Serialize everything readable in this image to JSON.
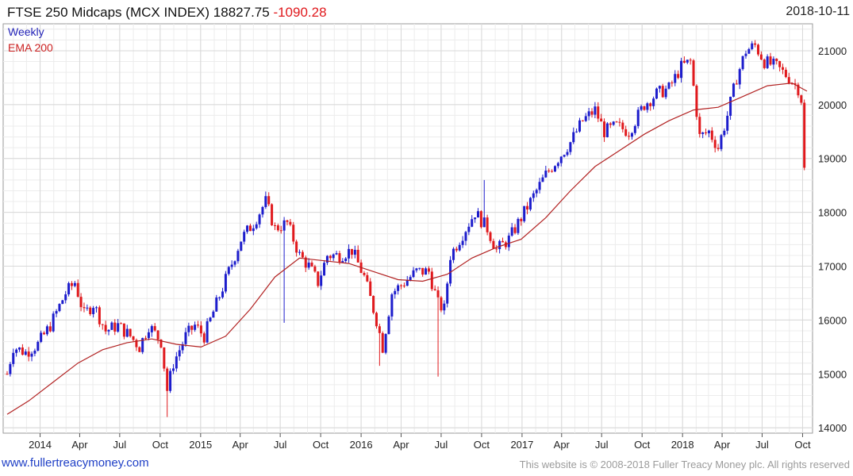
{
  "header": {
    "title": "FTSE 250 Midcaps (MCX INDEX)",
    "last": "18827.75",
    "change": "-1090.28",
    "date": "2018-10-11"
  },
  "legend": {
    "weekly": "Weekly",
    "ema": "EMA 200"
  },
  "footer": {
    "website": "www.fullertreacymoney.com",
    "copyright": "This website is © 2008-2018 Fuller Treacy Money plc. All rights reserved"
  },
  "colors": {
    "up": "#1d1dcc",
    "down": "#e0191d",
    "ema": "#b22222",
    "grid": "#d8d8d8"
  },
  "chart_data": {
    "type": "candlestick",
    "frequency": "weekly",
    "ylim": [
      13900,
      21500
    ],
    "y_ticks": [
      14000,
      15000,
      16000,
      17000,
      18000,
      19000,
      20000,
      21000
    ],
    "x_ticks": [
      "2014",
      "Apr",
      "Jul",
      "Oct",
      "2015",
      "Apr",
      "Jul",
      "Oct",
      "2016",
      "Apr",
      "Jul",
      "Oct",
      "2017",
      "Apr",
      "Jul",
      "Oct",
      "2018",
      "Apr",
      "Jul",
      "Oct"
    ],
    "grid": true,
    "legend_position": "top-left",
    "series": [
      {
        "name": "Weekly",
        "close_path": [
          [
            "2013-10-18",
            15000
          ],
          [
            "2013-11-01",
            15500
          ],
          [
            "2013-11-29",
            15400
          ],
          [
            "2013-12-27",
            15550
          ],
          [
            "2014-01-24",
            15900
          ],
          [
            "2014-02-28",
            16500
          ],
          [
            "2014-03-21",
            16700
          ],
          [
            "2014-04-11",
            16100
          ],
          [
            "2014-05-02",
            16300
          ],
          [
            "2014-05-30",
            15800
          ],
          [
            "2014-06-27",
            15900
          ],
          [
            "2014-07-25",
            15700
          ],
          [
            "2014-08-15",
            15500
          ],
          [
            "2014-09-05",
            15900
          ],
          [
            "2014-10-03",
            15600
          ],
          [
            "2014-10-17",
            14700
          ],
          [
            "2014-10-31",
            15200
          ],
          [
            "2014-11-28",
            15700
          ],
          [
            "2014-12-19",
            15900
          ],
          [
            "2015-01-09",
            15700
          ],
          [
            "2015-02-06",
            16300
          ],
          [
            "2015-03-06",
            16900
          ],
          [
            "2015-04-03",
            17500
          ],
          [
            "2015-05-01",
            17800
          ],
          [
            "2015-05-29",
            18200
          ],
          [
            "2015-06-19",
            17700
          ],
          [
            "2015-07-17",
            17800
          ],
          [
            "2015-08-14",
            17200
          ],
          [
            "2015-09-04",
            17000
          ],
          [
            "2015-09-25",
            16700
          ],
          [
            "2015-10-16",
            17200
          ],
          [
            "2015-11-13",
            17200
          ],
          [
            "2015-12-11",
            17300
          ],
          [
            "2016-01-08",
            16800
          ],
          [
            "2016-02-05",
            16000
          ],
          [
            "2016-02-19",
            15500
          ],
          [
            "2016-03-11",
            16500
          ],
          [
            "2016-04-08",
            16700
          ],
          [
            "2016-05-06",
            16900
          ],
          [
            "2016-06-03",
            16900
          ],
          [
            "2016-06-24",
            16300
          ],
          [
            "2016-07-08",
            16200
          ],
          [
            "2016-07-22",
            17200
          ],
          [
            "2016-08-19",
            17600
          ],
          [
            "2016-09-16",
            18000
          ],
          [
            "2016-10-14",
            17700
          ],
          [
            "2016-11-04",
            17300
          ],
          [
            "2016-12-02",
            17500
          ],
          [
            "2016-12-30",
            17900
          ],
          [
            "2017-01-27",
            18300
          ],
          [
            "2017-02-24",
            18700
          ],
          [
            "2017-03-24",
            19000
          ],
          [
            "2017-04-21",
            19300
          ],
          [
            "2017-05-19",
            19700
          ],
          [
            "2017-06-16",
            19900
          ],
          [
            "2017-07-07",
            19500
          ],
          [
            "2017-08-04",
            19600
          ],
          [
            "2017-09-01",
            19500
          ],
          [
            "2017-10-06",
            20000
          ],
          [
            "2017-11-03",
            20200
          ],
          [
            "2017-12-01",
            20300
          ],
          [
            "2017-12-29",
            20700
          ],
          [
            "2018-01-19",
            20800
          ],
          [
            "2018-02-09",
            19400
          ],
          [
            "2018-03-02",
            19500
          ],
          [
            "2018-03-23",
            19200
          ],
          [
            "2018-04-13",
            19800
          ],
          [
            "2018-05-04",
            20500
          ],
          [
            "2018-05-25",
            21000
          ],
          [
            "2018-06-15",
            21100
          ],
          [
            "2018-07-06",
            20800
          ],
          [
            "2018-08-03",
            20700
          ],
          [
            "2018-08-31",
            20500
          ],
          [
            "2018-09-21",
            20300
          ],
          [
            "2018-09-28",
            20100
          ],
          [
            "2018-10-05",
            19918
          ],
          [
            "2018-10-11",
            18827.75
          ]
        ],
        "spikes": [
          {
            "date": "2015-07-10",
            "low": 15950
          },
          {
            "date": "2016-06-24",
            "low": 14950
          },
          {
            "date": "2016-02-12",
            "low": 15150
          },
          {
            "date": "2016-10-07",
            "high": 18600
          },
          {
            "date": "2014-10-17",
            "low": 14200
          }
        ]
      },
      {
        "name": "EMA 200",
        "points": [
          [
            "2013-10-18",
            14250
          ],
          [
            "2013-12-06",
            14500
          ],
          [
            "2014-01-31",
            14850
          ],
          [
            "2014-03-28",
            15200
          ],
          [
            "2014-05-23",
            15450
          ],
          [
            "2014-07-18",
            15580
          ],
          [
            "2014-09-12",
            15650
          ],
          [
            "2014-11-07",
            15550
          ],
          [
            "2015-01-02",
            15500
          ],
          [
            "2015-02-27",
            15700
          ],
          [
            "2015-04-24",
            16200
          ],
          [
            "2015-06-19",
            16800
          ],
          [
            "2015-08-14",
            17150
          ],
          [
            "2015-10-09",
            17100
          ],
          [
            "2015-12-04",
            17050
          ],
          [
            "2016-01-29",
            16900
          ],
          [
            "2016-03-25",
            16750
          ],
          [
            "2016-05-20",
            16720
          ],
          [
            "2016-07-15",
            16850
          ],
          [
            "2016-09-09",
            17150
          ],
          [
            "2016-11-04",
            17350
          ],
          [
            "2016-12-30",
            17500
          ],
          [
            "2017-02-24",
            17900
          ],
          [
            "2017-04-21",
            18400
          ],
          [
            "2017-06-16",
            18850
          ],
          [
            "2017-08-11",
            19150
          ],
          [
            "2017-10-06",
            19450
          ],
          [
            "2017-12-01",
            19700
          ],
          [
            "2018-01-26",
            19900
          ],
          [
            "2018-03-23",
            19950
          ],
          [
            "2018-05-18",
            20150
          ],
          [
            "2018-07-13",
            20350
          ],
          [
            "2018-09-07",
            20400
          ],
          [
            "2018-10-11",
            20250
          ]
        ]
      }
    ]
  }
}
